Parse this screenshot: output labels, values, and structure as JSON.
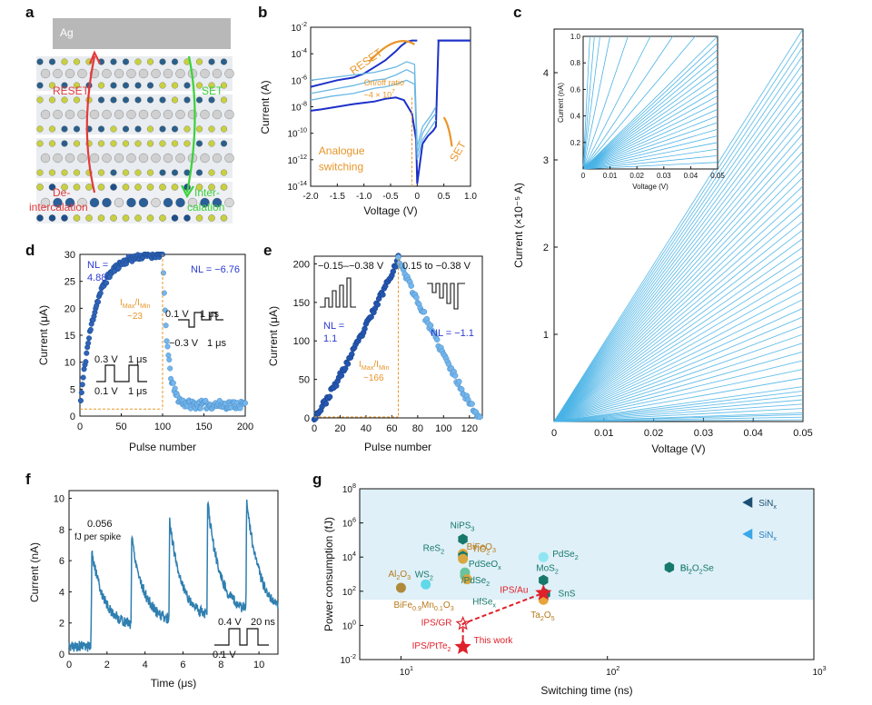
{
  "panel_labels": {
    "a": "a",
    "b": "b",
    "c": "c",
    "d": "d",
    "e": "e",
    "f": "f",
    "g": "g"
  },
  "schematic": {
    "electrode": "Ag",
    "reset_label": "RESET",
    "set_label": "SET",
    "deintercalation_label": [
      "De-",
      "intercalation"
    ],
    "intercalation_label": [
      "Inter-",
      "calation"
    ],
    "colors": {
      "reset": "#e23a3a",
      "set": "#3ad23a"
    }
  },
  "chart_data": [
    {
      "panel": "b",
      "type": "line",
      "xlabel": "Voltage (V)",
      "ylabel": "Current (A)",
      "xlim": [
        -2.0,
        1.0
      ],
      "ylim_log10": [
        -14,
        -2
      ],
      "y_scale": "log",
      "xticks": [
        "-2.0",
        "-1.5",
        "-1.0",
        "-0.5",
        "0",
        "0.5",
        "1.0"
      ],
      "yticks": [
        "10",
        "10",
        "10",
        "10",
        "10",
        "10",
        "10"
      ],
      "ytick_exponents": [
        "-14",
        "-12",
        "-10",
        "-8",
        "-6",
        "-4",
        "-2"
      ],
      "annotations": {
        "reset": "RESET",
        "set": "SET",
        "ratio": "On/off ratio",
        "ratio_value": "~4 × 10",
        "ratio_exp": "7",
        "mode": [
          "Analogue",
          "switching"
        ]
      },
      "colors": {
        "dark": "#1c30c8",
        "light": "#6ab7e4",
        "accent": "#e8962a"
      },
      "series": [
        {
          "x": [
            -2.0,
            -1.8,
            -1.5,
            -1.2,
            -1.0,
            -0.8,
            -0.6,
            -0.4,
            -0.25,
            -0.1,
            -0.02,
            0.0,
            0.1,
            0.2,
            0.3,
            0.35,
            0.4,
            0.5,
            0.7,
            1.0
          ],
          "log10_i": [
            -8.3,
            -8.2,
            -8.0,
            -7.8,
            -7.7,
            -7.6,
            -7.4,
            -7.3,
            -7.5,
            -8.5,
            -10.5,
            -13.8,
            -10.8,
            -10.2,
            -9.8,
            -9.5,
            -3.0,
            -3.0,
            -3.0,
            -3.0
          ]
        },
        {
          "x": [
            -2.0,
            -1.8,
            -1.5,
            -1.2,
            -1.0,
            -0.8,
            -0.6,
            -0.4,
            -0.3,
            -0.2,
            -0.1,
            0.0
          ],
          "log10_i": [
            -6.5,
            -6.3,
            -6.0,
            -5.8,
            -5.5,
            -5.0,
            -4.5,
            -3.8,
            -3.4,
            -3.1,
            -3.0,
            -3.0
          ]
        },
        {
          "x": [
            -2.0,
            -1.6,
            -1.2,
            -1.0,
            -0.8,
            -0.6,
            -0.4,
            -0.2,
            -0.05,
            0.0,
            0.1,
            0.25,
            0.35
          ],
          "log10_i": [
            -7.0,
            -6.7,
            -6.4,
            -6.2,
            -6.0,
            -5.9,
            -5.6,
            -5.2,
            -5.5,
            -11.5,
            -10.0,
            -9.0,
            -8.5
          ]
        },
        {
          "x": [
            -2.0,
            -1.6,
            -1.2,
            -1.0,
            -0.8,
            -0.6,
            -0.4,
            -0.2,
            -0.05,
            0.0,
            0.1,
            0.25,
            0.35
          ],
          "log10_i": [
            -7.5,
            -7.2,
            -7.0,
            -6.8,
            -6.6,
            -6.5,
            -6.3,
            -6.0,
            -6.3,
            -12.0,
            -10.5,
            -9.6,
            -9.0
          ]
        },
        {
          "x": [
            -2.0,
            -1.6,
            -1.2,
            -1.0,
            -0.8,
            -0.6,
            -0.4,
            -0.2,
            -0.05,
            0.0,
            0.1,
            0.25,
            0.35
          ],
          "log10_i": [
            -6.0,
            -5.8,
            -5.6,
            -5.5,
            -5.4,
            -5.2,
            -5.0,
            -4.6,
            -4.8,
            -11.0,
            -9.5,
            -8.7,
            -8.0
          ]
        }
      ]
    },
    {
      "panel": "c",
      "type": "line",
      "xlabel": "Voltage (V)",
      "ylabel": "Current (×10⁻⁵ A)",
      "xlim": [
        0,
        0.05
      ],
      "ylim": [
        0,
        4.5
      ],
      "xticks": [
        "0",
        "0.01",
        "0.02",
        "0.03",
        "0.04",
        "0.05"
      ],
      "yticks": [
        "1",
        "2",
        "3",
        "4"
      ],
      "line_color": "#4ab3e6",
      "description_count": 120,
      "slopes_end_current": [
        0.02,
        0.05,
        0.08,
        0.1,
        0.15,
        0.2,
        0.25,
        0.3,
        0.35,
        0.4,
        0.5,
        0.6,
        0.7,
        0.8,
        0.9,
        1.0,
        1.1,
        1.2,
        1.3,
        1.4,
        1.5,
        1.6,
        1.7,
        1.8,
        1.9,
        2.0,
        2.1,
        2.2,
        2.3,
        2.4,
        2.5,
        2.6,
        2.7,
        2.8,
        2.9,
        3.0,
        3.1,
        3.2,
        3.3,
        3.4,
        3.5,
        3.6,
        3.7,
        3.8,
        3.9,
        4.0,
        4.1,
        4.2,
        4.3,
        4.4,
        4.5
      ],
      "inset": {
        "xlabel": "Voltage (V)",
        "ylabel": "Current (nA)",
        "xlim": [
          0,
          0.05
        ],
        "ylim": [
          0,
          1.0
        ],
        "xticks": [
          "0",
          "0.01",
          "0.02",
          "0.03",
          "0.04",
          "0.05"
        ],
        "yticks": [
          "0.2",
          "0.4",
          "0.6",
          "0.8",
          "1.0"
        ],
        "slopes_end_current": [
          0.05,
          0.1,
          0.15,
          0.2,
          0.25,
          0.3,
          0.35,
          0.4,
          0.45,
          0.5,
          0.55,
          0.6,
          0.65,
          0.7,
          0.75,
          0.8,
          0.85,
          0.9,
          0.95,
          1.0,
          1.2,
          1.5,
          2.0,
          3.0,
          5.0,
          8.0,
          12.0,
          20.0
        ]
      }
    },
    {
      "panel": "d",
      "type": "scatter",
      "xlabel": "Pulse number",
      "ylabel": "Current (μA)",
      "xlim": [
        0,
        200
      ],
      "ylim": [
        0,
        30
      ],
      "xticks": [
        "0",
        "50",
        "100",
        "150",
        "200"
      ],
      "yticks": [
        "0",
        "5",
        "10",
        "15",
        "20",
        "25",
        "30"
      ],
      "labels": {
        "nl_pot": [
          "NL =",
          "4.88"
        ],
        "nl_dep": "NL = −6.76",
        "ratio": "I",
        "ratio_sub_max": "Max",
        "ratio_sep": "/I",
        "ratio_sub_min": "Min",
        "ratio_value": "~23",
        "pulse_dep_high": "0.1 V",
        "pulse_dep_w1": "1 μs",
        "pulse_dep_low": "−0.3 V",
        "pulse_dep_w2": "1 μs",
        "pulse_pot_high": "0.3 V",
        "pulse_pot_w1": "1 μs",
        "pulse_pot_low": "0.1 V",
        "pulse_pot_w2": "1 μs"
      },
      "colors": {
        "potentiation": "#2e63b8",
        "depression": "#74b6ec",
        "accent": "#e8962a",
        "nl": "#2b3ad0"
      },
      "potentiation_count": 100,
      "depression_count": 100,
      "i_max": 30,
      "i_min": 1.3
    },
    {
      "panel": "e",
      "type": "scatter",
      "xlabel": "Pulse number",
      "ylabel": "Current (μA)",
      "xlim": [
        0,
        130
      ],
      "ylim": [
        0,
        210
      ],
      "xticks": [
        "0",
        "20",
        "40",
        "60",
        "80",
        "100",
        "120"
      ],
      "yticks": [
        "0",
        "50",
        "100",
        "150",
        "200"
      ],
      "labels": {
        "pot_range": "−0.15–−0.38 V",
        "dep_range": "0.15 to −0.38 V",
        "nl_pot": [
          "NL =",
          "1.1"
        ],
        "nl_dep": "NL = −1.1",
        "ratio": "I",
        "ratio_sub_max": "Max",
        "ratio_sep": "/I",
        "ratio_sub_min": "Min",
        "ratio_value": "~166"
      },
      "colors": {
        "potentiation": "#2456b0",
        "depression": "#74b6ec",
        "accent": "#e8962a",
        "nl": "#2b3ad0"
      },
      "peak_pulse": 65,
      "i_max": 207,
      "i_min": 1.2
    },
    {
      "panel": "f",
      "type": "line",
      "xlabel": "Time (μs)",
      "ylabel": "Current (nA)",
      "xlim": [
        0,
        11
      ],
      "ylim": [
        0,
        10.5
      ],
      "xticks": [
        "0",
        "2",
        "4",
        "6",
        "8",
        "10"
      ],
      "yticks": [
        "0",
        "2",
        "4",
        "6",
        "8",
        "10"
      ],
      "labels": {
        "energy": "0.056",
        "energy_unit": "fJ per spike",
        "pulse_high": "0.4 V",
        "pulse_width": "20 ns",
        "pulse_low": "0.1 V"
      },
      "color": "#2f7fb0",
      "spikes": [
        {
          "t": 1.15,
          "peak": 7.0
        },
        {
          "t": 3.25,
          "peak": 8.0
        },
        {
          "t": 5.25,
          "peak": 9.0
        },
        {
          "t": 7.25,
          "peak": 10.3
        },
        {
          "t": 9.3,
          "peak": 10.5
        }
      ]
    },
    {
      "panel": "g",
      "type": "scatter",
      "xlabel": "Switching time (ns)",
      "ylabel": "Power consumption (fJ)",
      "x_scale": "log",
      "y_scale": "log",
      "xlim_log10": [
        0.8,
        3.0
      ],
      "ylim_log10": [
        -2,
        8
      ],
      "xticks": [
        "10",
        "10",
        "10"
      ],
      "xtick_exponents": [
        "1",
        "2",
        "3"
      ],
      "yticks": [
        "10",
        "10",
        "10",
        "10",
        "10",
        "10"
      ],
      "ytick_exponents": [
        "-2",
        "0",
        "2",
        "4",
        "6",
        "8"
      ],
      "shaded_region_log10": {
        "x0": 0.8,
        "x1": 3.0,
        "y0": 1.5,
        "y1": 8.0
      },
      "shade_color": "#dff0f8",
      "points": [
        {
          "label": "SiN",
          "sub": "x",
          "x": 2.68,
          "y": 7.2,
          "marker": "tri-left",
          "color": "#1c4f73",
          "label_color": "#1c4f73"
        },
        {
          "label": "SiN",
          "sub": "x",
          "x": 2.68,
          "y": 5.35,
          "marker": "tri-left",
          "color": "#3aa7e8",
          "label_color": "#2a7fc0"
        },
        {
          "label": "NiPS",
          "sub": "3",
          "x": 1.3,
          "y": 5.05,
          "marker": "hex",
          "color": "#16786a",
          "label_color": "#16786a"
        },
        {
          "label": "TiO",
          "sub": "2",
          "x": 1.3,
          "y": 4.2,
          "marker": "sphere",
          "color": "#d9a640",
          "label_color": "#b77a1c"
        },
        {
          "label": "ReS",
          "sub": "2",
          "x": 1.3,
          "y": 4.05,
          "marker": "hex",
          "color": "#16786a",
          "label_color": "#16786a"
        },
        {
          "label": "BiFeO",
          "sub": "3",
          "x": 1.3,
          "y": 3.9,
          "marker": "sphere",
          "color": "#d9a640",
          "label_color": "#b77a1c"
        },
        {
          "label": "PdSeO",
          "sub": "x",
          "x": 1.31,
          "y": 3.1,
          "marker": "sphere",
          "color": "#6ac39e",
          "label_color": "#16786a"
        },
        {
          "label": "/PdSe",
          "sub": "2",
          "x": 1.31,
          "y": 2.9,
          "marker": "sphere",
          "color": "#6ac39e",
          "label_color": "#16786a"
        },
        {
          "label": "HfSe",
          "sub": "x",
          "x": 1.32,
          "y": 2.7,
          "marker": "sphere",
          "color": "#d9a640",
          "label_color": "#16786a"
        },
        {
          "label": "WS",
          "sub": "2",
          "x": 1.12,
          "y": 2.4,
          "marker": "sphere",
          "color": "#5fd8e8",
          "label_color": "#16786a"
        },
        {
          "label": "Al",
          "sub": "2",
          "x": 1.0,
          "y": 2.2,
          "marker": "sphere",
          "color": "#b08a3a",
          "label_color": "#b77a1c"
        },
        {
          "label": "BiFe",
          "sub": "0.9",
          "x": 1.0,
          "y": 2.2,
          "marker": "none",
          "color": "#b77a1c",
          "label_color": "#b77a1c"
        },
        {
          "label": "PdSe",
          "sub": "2",
          "x": 1.69,
          "y": 4.0,
          "marker": "sphere",
          "color": "#8fe6f2",
          "label_color": "#16786a"
        },
        {
          "label": "MoS",
          "sub": "2",
          "x": 1.69,
          "y": 2.65,
          "marker": "hex",
          "color": "#16786a",
          "label_color": "#16786a"
        },
        {
          "label": "SnS",
          "sub": "",
          "x": 1.7,
          "y": 1.85,
          "marker": "hex",
          "color": "#16786a",
          "label_color": "#16786a"
        },
        {
          "label": "Ta",
          "sub": "2",
          "x": 1.69,
          "y": 1.5,
          "marker": "sphere",
          "color": "#e8a43a",
          "label_color": "#b77a1c"
        },
        {
          "label": "Bi",
          "sub": "2",
          "x": 2.3,
          "y": 3.4,
          "marker": "hex",
          "color": "#16786a",
          "label_color": "#16786a"
        },
        {
          "label": "IPS/Au",
          "sub": "",
          "x": 1.69,
          "y": 1.9,
          "marker": "star",
          "color": "#e0202a",
          "label_color": "#e0202a"
        },
        {
          "label": "IPS/GR",
          "sub": "",
          "x": 1.3,
          "y": 0.1,
          "marker": "star-open",
          "color": "#e0202a",
          "label_color": "#e0202a"
        },
        {
          "label": "IPS/PtTe",
          "sub": "2",
          "x": 1.3,
          "y": -1.26,
          "marker": "star",
          "color": "#e0202a",
          "label_color": "#e0202a"
        }
      ],
      "extra_labels": {
        "al2o3": [
          "Al",
          "2",
          "O",
          "3"
        ],
        "bifemno": [
          "BiFe",
          "0.9",
          "Mn",
          "0.1",
          "O",
          "3"
        ],
        "ta2o5": [
          "Ta",
          "2",
          "O",
          "5"
        ],
        "bi2o2se": [
          "Bi",
          "2",
          "O",
          "2",
          "Se"
        ],
        "this_work": "This work"
      }
    }
  ]
}
